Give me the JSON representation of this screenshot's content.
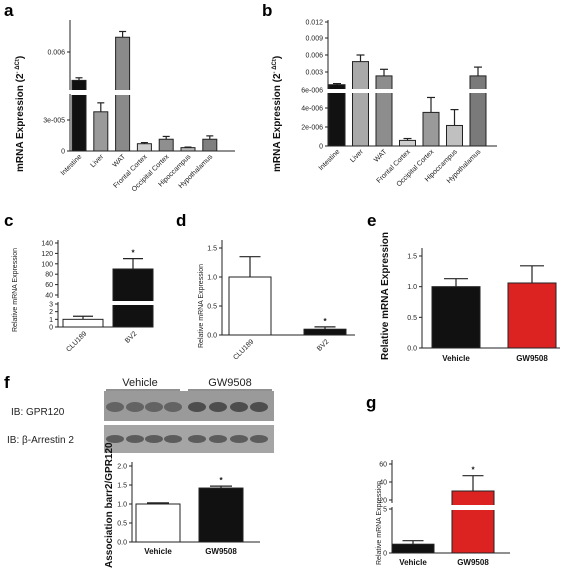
{
  "panels": {
    "a": {
      "label": "a",
      "chart_data": {
        "type": "bar",
        "ylabel": "mRNA Expression (2",
        "ylabel_sup": "- ΔCt",
        "ylabel_close": ")",
        "categories": [
          "Intestine",
          "Liver",
          "WAT",
          "Frontal Cortex",
          "Occipital Cortex",
          "Hipoccampus",
          "Hypothalamus"
        ],
        "values": [
          0.0045,
          3.5e-05,
          0.006,
          6.5e-06,
          1.05e-05,
          3e-06,
          1.05e-05
        ],
        "errors": [
          9e-05,
          8e-06,
          0.0002,
          1e-06,
          2.5e-06,
          5e-07,
          3e-06
        ],
        "colors": [
          "#111111",
          "#9a9a9a",
          "#8a8a8a",
          "#cfcfcf",
          "#8f8f8f",
          "#b8b8b8",
          "#7f7f7f"
        ],
        "ticks_lower": [
          "0",
          "3e-005"
        ],
        "ticks_upper": [
          "0.006"
        ],
        "broken_axis": true
      }
    },
    "b": {
      "label": "b",
      "chart_data": {
        "type": "bar",
        "ylabel": "mRNA Expression (2",
        "ylabel_sup": "- ΔCt",
        "ylabel_close": ")",
        "categories": [
          "Intestine",
          "Liver",
          "WAT",
          "Frontal Cortex",
          "Occipital Cortex",
          "Hipoccampus",
          "Hypothalamus"
        ],
        "values": [
          0.0006,
          0.0048,
          0.0022,
          6e-07,
          3.6e-06,
          2.2e-06,
          0.0022
        ],
        "errors": [
          0.0002,
          0.0012,
          0.0012,
          2e-07,
          1.6e-06,
          1.7e-06,
          0.0016
        ],
        "colors": [
          "#111111",
          "#a9a9a9",
          "#8d8d8d",
          "#cfcfcf",
          "#9a9a9a",
          "#c0c0c0",
          "#7a7a7a"
        ],
        "ticks_lower": [
          "0",
          "2e-006",
          "4e-006",
          "6e-006"
        ],
        "ticks_upper": [
          "0.003",
          "0.006",
          "0.009",
          "0.012"
        ],
        "broken_axis": true
      }
    },
    "c": {
      "label": "c",
      "chart_data": {
        "type": "bar",
        "ylabel": "Relative mRNA Expression",
        "categories": [
          "CLU189",
          "BV2"
        ],
        "values": [
          1,
          90
        ],
        "errors": [
          0.4,
          20
        ],
        "colors": [
          "#ffffff",
          "#111111"
        ],
        "ticks": [
          "0",
          "1",
          "2",
          "3",
          "40",
          "60",
          "80",
          "100",
          "120",
          "140"
        ],
        "annotation": "*",
        "broken_axis": true
      }
    },
    "d": {
      "label": "d",
      "chart_data": {
        "type": "bar",
        "ylabel": "Relative mRNA Expression",
        "categories": [
          "CLU189",
          "BV2"
        ],
        "values": [
          1.0,
          0.1
        ],
        "errors": [
          0.35,
          0.04
        ],
        "colors": [
          "#ffffff",
          "#111111"
        ],
        "ticks": [
          "0.0",
          "0.5",
          "1.0",
          "1.5"
        ],
        "ylim": [
          0,
          1.5
        ],
        "annotation": "*"
      }
    },
    "e": {
      "label": "e",
      "chart_data": {
        "type": "bar",
        "ylabel": "Relative mRNA Expression",
        "categories": [
          "Vehicle",
          "GW9508"
        ],
        "values": [
          1.0,
          1.06
        ],
        "errors": [
          0.13,
          0.28
        ],
        "colors": [
          "#111111",
          "#dd2222"
        ],
        "ticks": [
          "0.0",
          "0.5",
          "1.0",
          "1.5"
        ],
        "ylim": [
          0,
          1.5
        ]
      }
    },
    "f": {
      "label": "f",
      "blot": {
        "group1": "Vehicle",
        "group2": "GW9508",
        "row1": "IB: GPR120",
        "row2": "IB: β-Arrestin 2"
      },
      "chart_data": {
        "type": "bar",
        "ylabel": "Association barr2/GPR120",
        "categories": [
          "Vehicle",
          "GW9508"
        ],
        "values": [
          1.0,
          1.42
        ],
        "errors": [
          0.03,
          0.05
        ],
        "colors": [
          "#ffffff",
          "#111111"
        ],
        "ticks": [
          "0.0",
          "0.5",
          "1.0",
          "1.5",
          "2.0"
        ],
        "ylim": [
          0,
          2.0
        ],
        "annotation": "*"
      }
    },
    "g": {
      "label": "g",
      "chart_data": {
        "type": "bar",
        "ylabel": "Relative mRNA Expression",
        "categories": [
          "Vehicle",
          "GW9508"
        ],
        "values": [
          1.0,
          30
        ],
        "errors": [
          0.4,
          17
        ],
        "colors": [
          "#111111",
          "#dd2222"
        ],
        "ticks": [
          "0",
          "5",
          "20",
          "40",
          "60"
        ],
        "annotation": "*",
        "broken_axis": true
      }
    }
  }
}
